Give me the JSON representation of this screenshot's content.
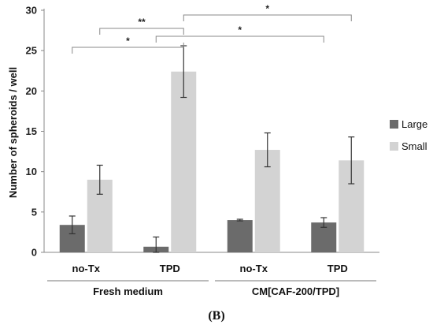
{
  "chart_data": {
    "type": "bar",
    "ylabel": "Number of spheroids / well",
    "ylim": [
      0,
      30
    ],
    "yticks": [
      0,
      5,
      10,
      15,
      20,
      25,
      30
    ],
    "categories": [
      "no-Tx",
      "TPD",
      "no-Tx",
      "TPD"
    ],
    "groups": [
      {
        "label": "Fresh medium",
        "categories": [
          0,
          1
        ]
      },
      {
        "label": "CM[CAF-200/TPD]",
        "categories": [
          2,
          3
        ]
      }
    ],
    "series": [
      {
        "name": "Large",
        "color": "#6b6b6b",
        "values": [
          3.4,
          0.7,
          4.0,
          3.7
        ],
        "errors": [
          1.1,
          1.2,
          0.1,
          0.6
        ]
      },
      {
        "name": "Small",
        "color": "#d3d3d3",
        "values": [
          9.0,
          22.4,
          12.7,
          11.4
        ],
        "errors": [
          1.8,
          3.2,
          2.1,
          2.9
        ]
      }
    ],
    "legend": "right",
    "grid": false,
    "significance": [
      {
        "label": "*",
        "from": {
          "category": 0,
          "series": 0
        },
        "to": {
          "category": 1,
          "series": 1
        }
      },
      {
        "label": "**",
        "from": {
          "category": 0,
          "series": 1
        },
        "to": {
          "category": 1,
          "series": 1
        }
      },
      {
        "label": "*",
        "from": {
          "category": 1,
          "series": 0
        },
        "to": {
          "category": 3,
          "series": 0
        }
      },
      {
        "label": "*",
        "from": {
          "category": 1,
          "series": 1
        },
        "to": {
          "category": 3,
          "series": 1
        }
      }
    ]
  },
  "panel_label": "(B)"
}
